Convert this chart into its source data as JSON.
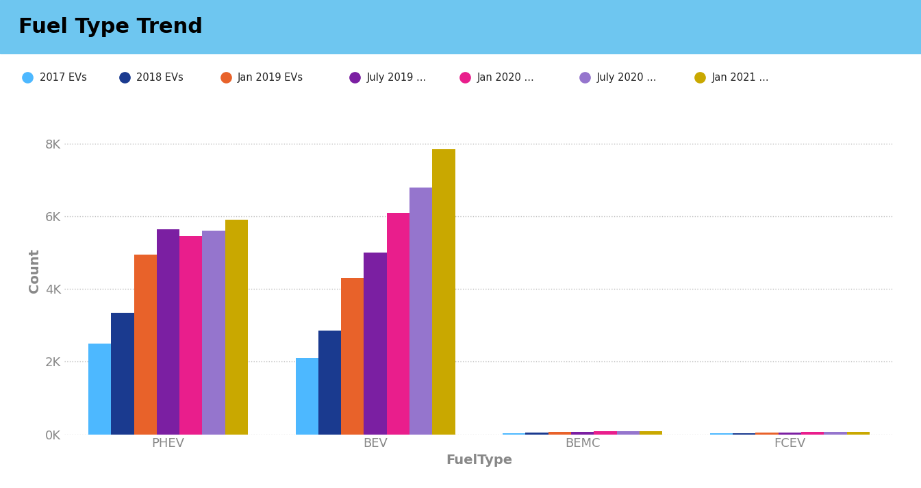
{
  "title": "Fuel Type Trend",
  "title_bg_color": "#6EC6F0",
  "title_text_color": "#000000",
  "xlabel": "FuelType",
  "ylabel": "Count",
  "categories": [
    "PHEV",
    "BEV",
    "BEMC",
    "FCEV"
  ],
  "series": [
    {
      "label": "2017 EVs",
      "color": "#4DB8FF",
      "values": [
        2500,
        2100,
        30,
        25
      ]
    },
    {
      "label": "2018 EVs",
      "color": "#1A3A8F",
      "values": [
        3350,
        2850,
        45,
        35
      ]
    },
    {
      "label": "Jan 2019 EVs",
      "color": "#E8622A",
      "values": [
        4950,
        4300,
        60,
        50
      ]
    },
    {
      "label": "July 2019 ...",
      "color": "#7B1FA2",
      "values": [
        5650,
        5000,
        70,
        55
      ]
    },
    {
      "label": "Jan 2020 ...",
      "color": "#E91E8C",
      "values": [
        5450,
        6100,
        80,
        65
      ]
    },
    {
      "label": "July 2020 ...",
      "color": "#9575CD",
      "values": [
        5600,
        6800,
        85,
        70
      ]
    },
    {
      "label": "Jan 2021 ...",
      "color": "#C9A800",
      "values": [
        5900,
        7850,
        90,
        75
      ]
    }
  ],
  "ylim": [
    0,
    9000
  ],
  "yticks": [
    0,
    2000,
    4000,
    6000,
    8000
  ],
  "ytick_labels": [
    "0K",
    "2K",
    "4K",
    "6K",
    "8K"
  ],
  "bg_color": "#FFFFFF",
  "plot_bg_color": "#FFFFFF",
  "grid_color": "#BBBBBB",
  "tick_color": "#888888",
  "title_fontsize": 22,
  "label_fontsize": 14,
  "tick_fontsize": 13,
  "legend_fontsize": 10.5,
  "legend_x_starts": [
    0.03,
    0.135,
    0.245,
    0.385,
    0.505,
    0.635,
    0.76
  ],
  "bar_width": 0.11
}
